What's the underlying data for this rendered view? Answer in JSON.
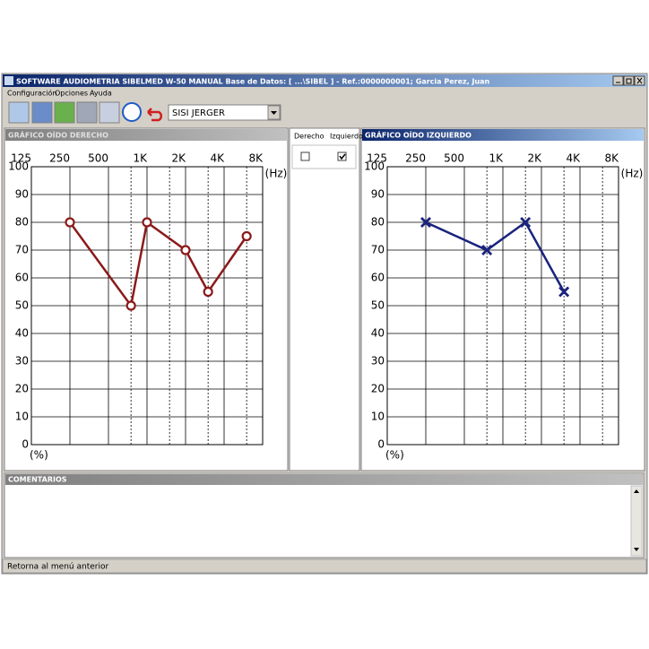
{
  "window": {
    "title": "SOFTWARE AUDIOMETRIA SIBELMED W-50  MANUAL    Base de Datos: [ ...\\SIBEL ] - Ref.:0000000001; Garcia Perez, Juan",
    "menu": [
      "Configuración",
      "Opciones",
      "Ayuda"
    ],
    "test_select": "SISI JERGER",
    "ear_select": [
      {
        "label": "Derecho",
        "checked": false
      },
      {
        "label": "Izquierdo",
        "checked": true
      }
    ],
    "comments_title": "COMENTARIOS",
    "status": "Retorna al menú anterior"
  },
  "chart_data": [
    {
      "type": "line",
      "title": "GRÁFICO OÍDO DERECHO",
      "x_label": "(Hz)",
      "y_label": "(%)",
      "x": [
        250,
        750,
        1000,
        2000,
        3000,
        6000
      ],
      "series": [
        {
          "color": "#8b1a1a",
          "marker": "o",
          "values": [
            80,
            50,
            80,
            70,
            55,
            75
          ]
        }
      ],
      "xscale": "log",
      "xlim": [
        125,
        8000
      ],
      "xticks": [
        125,
        250,
        500,
        {
          "value": 1000,
          "label": "1K"
        },
        {
          "value": 2000,
          "label": "2K"
        },
        {
          "value": 4000,
          "label": "4K"
        },
        {
          "value": 8000,
          "label": "8K"
        }
      ],
      "x_minor_grid": [
        750,
        1500,
        3000,
        6000
      ],
      "ylim": [
        0,
        100
      ],
      "yticks": [
        0,
        10,
        20,
        30,
        40,
        50,
        60,
        70,
        80,
        90,
        100
      ],
      "grid": true
    },
    {
      "type": "line",
      "title": "GRÁFICO OÍDO IZQUIERDO",
      "x_label": "(Hz)",
      "y_label": "(%)",
      "x": [
        250,
        750,
        1500,
        3000
      ],
      "series": [
        {
          "color": "#1a237e",
          "marker": "x",
          "values": [
            80,
            70,
            80,
            55
          ]
        }
      ],
      "xscale": "log",
      "xlim": [
        125,
        8000
      ],
      "xticks": [
        125,
        250,
        500,
        {
          "value": 1000,
          "label": "1K"
        },
        {
          "value": 2000,
          "label": "2K"
        },
        {
          "value": 4000,
          "label": "4K"
        },
        {
          "value": 8000,
          "label": "8K"
        }
      ],
      "x_minor_grid": [
        750,
        1500,
        3000,
        6000
      ],
      "ylim": [
        0,
        100
      ],
      "yticks": [
        0,
        10,
        20,
        30,
        40,
        50,
        60,
        70,
        80,
        90,
        100
      ],
      "grid": true
    }
  ]
}
